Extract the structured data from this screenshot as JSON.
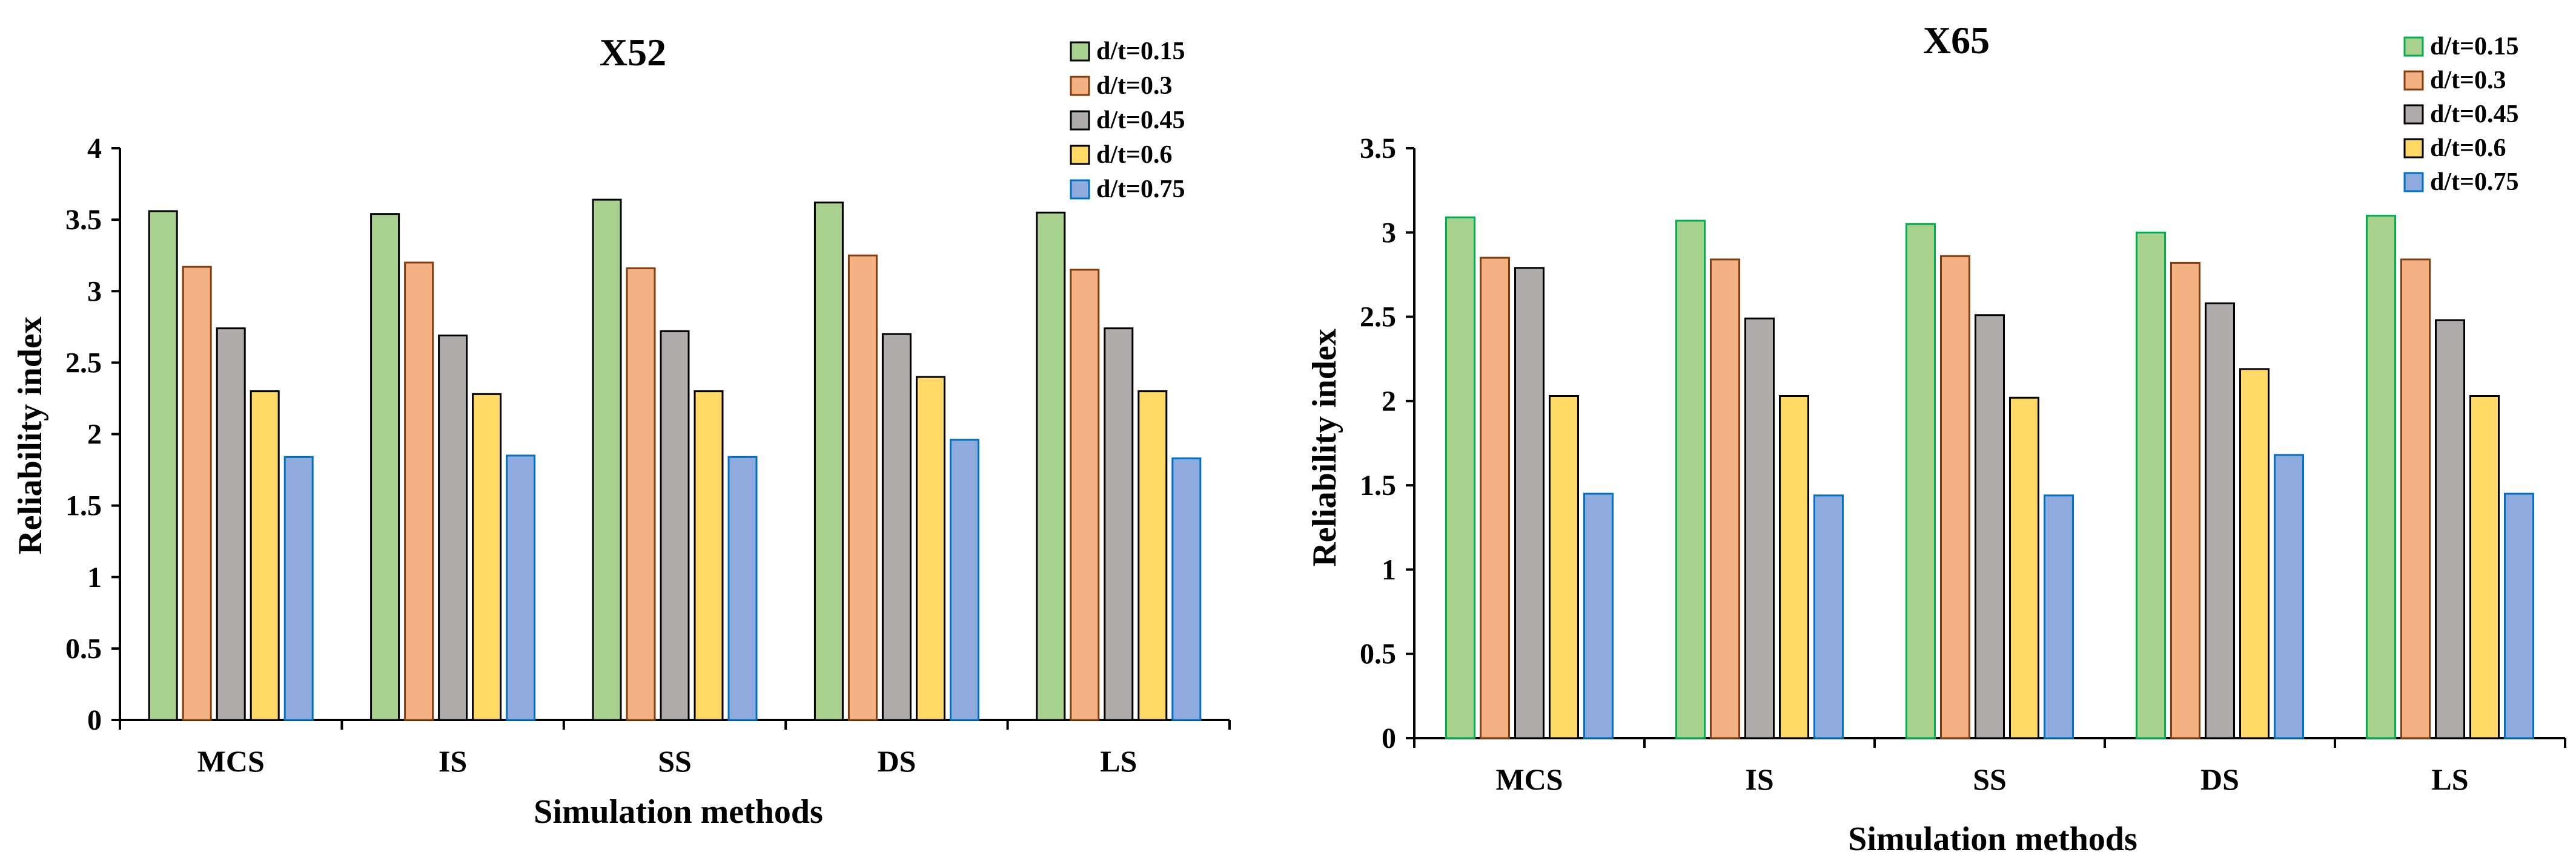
{
  "chart_data": [
    {
      "type": "bar",
      "title": "X52",
      "xlabel": "Simulation methods",
      "ylabel": "Reliability index",
      "categories": [
        "MCS",
        "IS",
        "SS",
        "DS",
        "LS"
      ],
      "ylim": [
        0,
        4
      ],
      "yticks": [
        "0",
        "0.5",
        "1",
        "1.5",
        "2",
        "2.5",
        "3",
        "3.5",
        "4"
      ],
      "legend_position": "top-right",
      "grid": false,
      "series": [
        {
          "name": "d/t=0.15",
          "color": "#a9d18e",
          "edge": "#000000",
          "values": [
            3.56,
            3.54,
            3.64,
            3.62,
            3.55
          ]
        },
        {
          "name": "d/t=0.3",
          "color": "#f4b183",
          "edge": "#843c0c",
          "values": [
            3.17,
            3.2,
            3.16,
            3.25,
            3.15
          ]
        },
        {
          "name": "d/t=0.45",
          "color": "#afabab",
          "edge": "#000000",
          "values": [
            2.74,
            2.69,
            2.72,
            2.7,
            2.74
          ]
        },
        {
          "name": "d/t=0.6",
          "color": "#ffd966",
          "edge": "#000000",
          "values": [
            2.3,
            2.28,
            2.3,
            2.4,
            2.3
          ]
        },
        {
          "name": "d/t=0.75",
          "color": "#8faadc",
          "edge": "#0070c0",
          "values": [
            1.84,
            1.85,
            1.84,
            1.96,
            1.83
          ]
        }
      ]
    },
    {
      "type": "bar",
      "title": "X65",
      "xlabel": "Simulation methods",
      "ylabel": "Reliability index",
      "categories": [
        "MCS",
        "IS",
        "SS",
        "DS",
        "LS"
      ],
      "ylim": [
        0,
        3.5
      ],
      "yticks": [
        "0",
        "0.5",
        "1",
        "1.5",
        "2",
        "2.5",
        "3",
        "3.5"
      ],
      "legend_position": "top-right",
      "grid": false,
      "series": [
        {
          "name": "d/t=0.15",
          "color": "#a9d18e",
          "edge": "#00b050",
          "values": [
            3.09,
            3.07,
            3.05,
            3.0,
            3.1
          ]
        },
        {
          "name": "d/t=0.3",
          "color": "#f4b183",
          "edge": "#843c0c",
          "values": [
            2.85,
            2.84,
            2.86,
            2.82,
            2.84
          ]
        },
        {
          "name": "d/t=0.45",
          "color": "#afabab",
          "edge": "#000000",
          "values": [
            2.79,
            2.49,
            2.51,
            2.58,
            2.48
          ]
        },
        {
          "name": "d/t=0.6",
          "color": "#ffd966",
          "edge": "#000000",
          "values": [
            2.03,
            2.03,
            2.02,
            2.19,
            2.03
          ]
        },
        {
          "name": "d/t=0.75",
          "color": "#8faadc",
          "edge": "#0070c0",
          "values": [
            1.45,
            1.44,
            1.44,
            1.68,
            1.45
          ]
        }
      ]
    }
  ]
}
